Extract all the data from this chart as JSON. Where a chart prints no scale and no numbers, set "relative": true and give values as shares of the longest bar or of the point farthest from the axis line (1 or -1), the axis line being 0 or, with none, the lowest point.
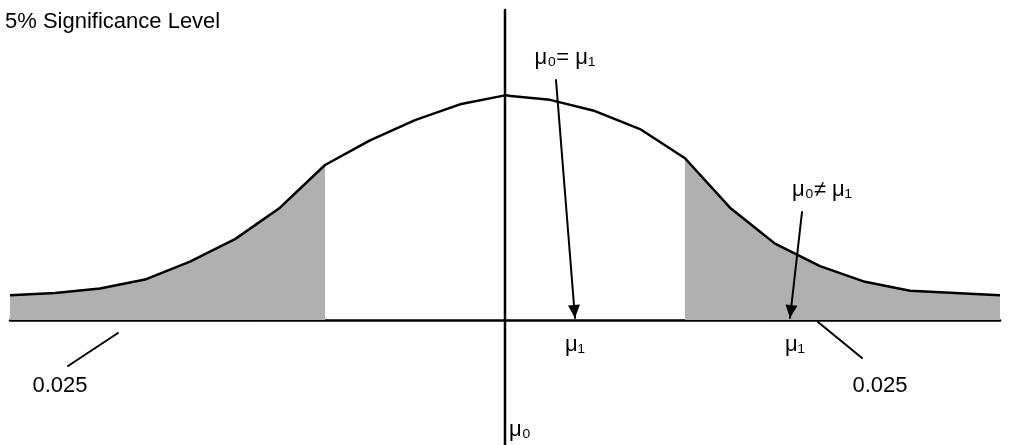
{
  "chart_data": {
    "type": "line",
    "title": "5% Significance Level",
    "relative": true,
    "grid": false,
    "marker": "none",
    "categories": [
      null,
      null,
      null,
      null,
      null,
      null,
      null,
      null,
      null,
      null,
      null,
      null,
      null,
      null,
      null,
      null,
      null,
      null,
      null,
      null,
      null,
      null,
      null
    ],
    "series": [
      {
        "color": "#000000",
        "values": [
          0.11,
          0.12,
          0.14,
          0.18,
          0.26,
          0.36,
          0.5,
          0.69,
          0.8,
          0.89,
          0.96,
          1,
          0.98,
          0.93,
          0.85,
          0.72,
          0.5,
          0.34,
          0.24,
          0.17,
          0.13,
          0.12,
          0.11
        ]
      },
      {
        "type": "area",
        "color": "#b0b0b0",
        "values": [
          0.11,
          0.12,
          0.14,
          0.18,
          0.26,
          0.36,
          0.5,
          0.69,
          null,
          null,
          null,
          null,
          null,
          null,
          null,
          null,
          null,
          null,
          null,
          null,
          null,
          null,
          null
        ]
      },
      {
        "type": "area",
        "color": "#b0b0b0",
        "values": [
          null,
          null,
          null,
          null,
          null,
          null,
          null,
          null,
          null,
          null,
          null,
          null,
          null,
          null,
          null,
          0.72,
          0.5,
          0.34,
          0.24,
          0.17,
          0.13,
          0.12,
          0.11
        ]
      }
    ],
    "annotations": [
      "μ₁",
      "μ₁",
      "μ₀= μ₁",
      "μ₀≠ μ₁",
      "0.025",
      "0.025",
      "μ₀"
    ]
  }
}
